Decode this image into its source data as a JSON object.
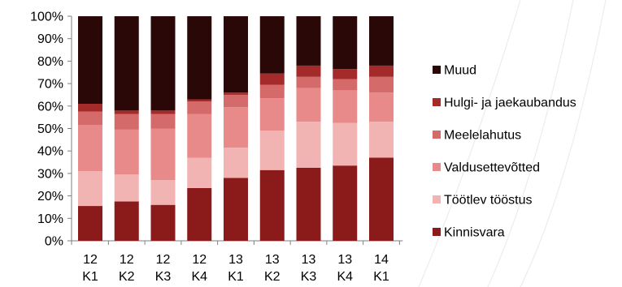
{
  "chart_data": {
    "type": "bar",
    "stacked": true,
    "percent": true,
    "categories": [
      [
        "12",
        "K1"
      ],
      [
        "12",
        "K2"
      ],
      [
        "12",
        "K3"
      ],
      [
        "12",
        "K4"
      ],
      [
        "13",
        "K1"
      ],
      [
        "13",
        "K2"
      ],
      [
        "13",
        "K3"
      ],
      [
        "13",
        "K4"
      ],
      [
        "14",
        "K1"
      ]
    ],
    "series": [
      {
        "name": "Kinnisvara",
        "color": "#8b1a1a",
        "values": [
          15.5,
          17.5,
          16,
          23.5,
          28,
          31.5,
          32.5,
          33.5,
          37
        ]
      },
      {
        "name": "Töötlev tööstus",
        "color": "#f2b3b3",
        "values": [
          15.5,
          12,
          11,
          13.5,
          13.5,
          17.5,
          20.5,
          19,
          16
        ]
      },
      {
        "name": "Valdusettevõtted",
        "color": "#e88a8a",
        "values": [
          20.5,
          20,
          23,
          19.5,
          18,
          14.5,
          15,
          14.5,
          13
        ]
      },
      {
        "name": "Meelelahutus",
        "color": "#d46a6a",
        "values": [
          6,
          7,
          6.5,
          5.5,
          5.5,
          6,
          5,
          5,
          7
        ]
      },
      {
        "name": "Hulgi- ja jaekaubandus",
        "color": "#a52a2a",
        "values": [
          3.5,
          1.5,
          1.5,
          1,
          1,
          5,
          5,
          4.5,
          5
        ]
      },
      {
        "name": "Muud",
        "color": "#2a0808",
        "values": [
          39,
          42,
          42,
          37,
          34,
          25.5,
          22,
          23.5,
          22
        ]
      }
    ],
    "ylim": [
      0,
      100
    ],
    "yticks": [
      "0%",
      "10%",
      "20%",
      "30%",
      "40%",
      "50%",
      "60%",
      "70%",
      "80%",
      "90%",
      "100%"
    ],
    "legend_position": "right",
    "grid": false
  }
}
